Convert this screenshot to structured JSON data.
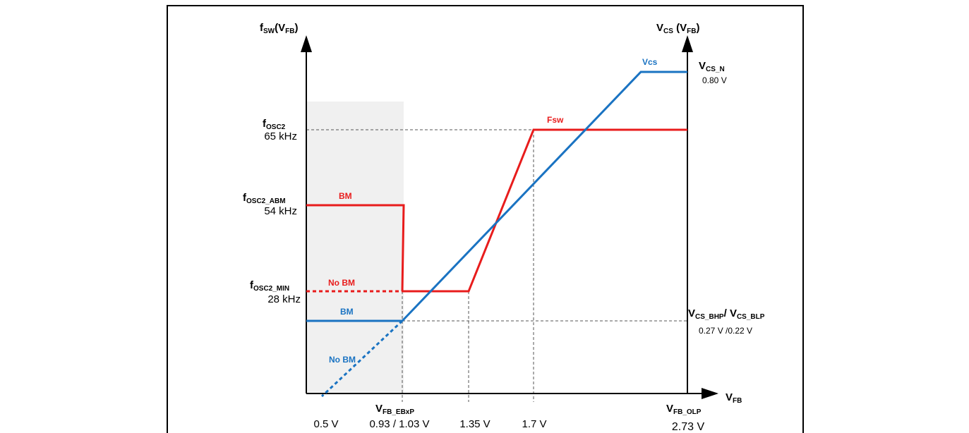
{
  "axes": {
    "left_title": "f",
    "left_title_sub": "SW",
    "left_title_paren": "(V",
    "left_title_paren_sub": "FB",
    "left_title_close": ")",
    "right_title": "V",
    "right_title_sub": "CS",
    "right_title_paren": " (V",
    "right_title_paren_sub": "FB",
    "right_title_close": ")",
    "x_title": "V",
    "x_title_sub": "FB"
  },
  "left_labels": {
    "fosc2": "f",
    "fosc2_sub": "OSC2",
    "fosc2_val": "65 kHz",
    "abm": "f",
    "abm_sub": "OSC2_ABM",
    "abm_val": "54 kHz",
    "min": "f",
    "min_sub": "OSC2_MIN",
    "min_val": "28 kHz"
  },
  "right_labels": {
    "csn": "V",
    "csn_sub": "CS_N",
    "csn_val": "0.80 V",
    "bhp": "V",
    "bhp_sub": "CS_BHP",
    "bhp_sep": "/ ",
    "blp": "V",
    "blp_sub": "CS_BLP",
    "bhp_val": "0.27 V /0.22 V"
  },
  "x_labels": {
    "ebxp": "V",
    "ebxp_sub": "FB_EBxP",
    "olp": "V",
    "olp_sub": "FB_OLP",
    "t05": "0.5 V",
    "t093": "0.93 / 1.03 V",
    "t135": "1.35 V",
    "t17": "1.7 V",
    "t273": "2.73 V"
  },
  "curve_labels": {
    "fsw": "Fsw",
    "vcs": "Vcs",
    "bm_red": "BM",
    "nobm_red": "No BM",
    "bm_blue": "BM",
    "nobm_blue": "No BM"
  },
  "colors": {
    "red": "#e81c1c",
    "blue": "#1a73c2",
    "shade": "#f0f0f0",
    "axis": "#000000",
    "guide": "#555555"
  }
}
